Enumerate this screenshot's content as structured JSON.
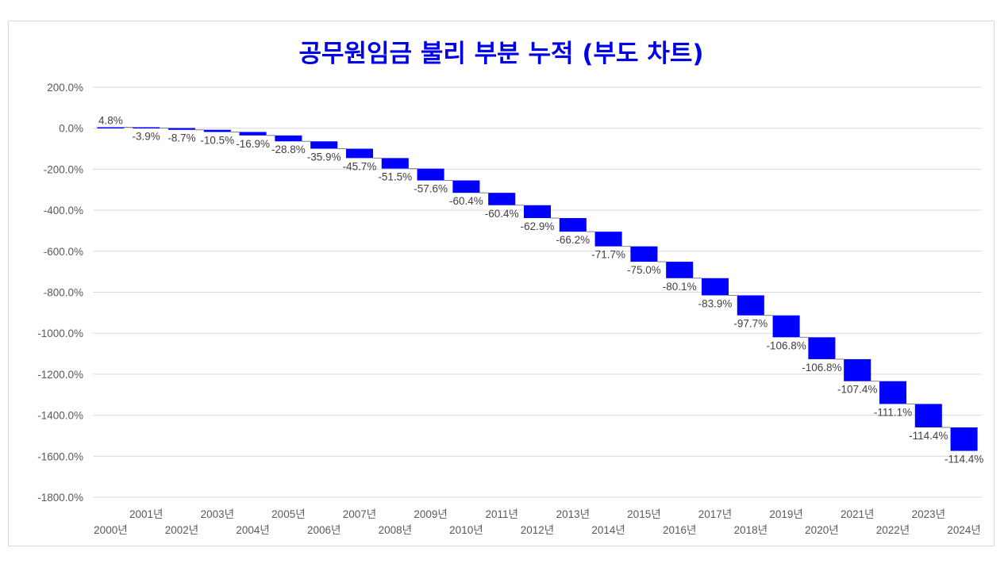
{
  "chart_data": {
    "type": "waterfall",
    "title": "공무원임금 불리 부분 누적 (부도 차트)",
    "xlabel": "",
    "ylabel": "",
    "ylim": [
      -1800,
      200
    ],
    "ytick_step": 200,
    "y_tick_labels": [
      "200.0%",
      "0.0%",
      "-200.0%",
      "-400.0%",
      "-600.0%",
      "-800.0%",
      "-1000.0%",
      "-1200.0%",
      "-1400.0%",
      "-1600.0%",
      "-1800.0%"
    ],
    "grid": true,
    "legend": "none",
    "bar_color": "#0000ff",
    "categories": [
      "2000년",
      "2001년",
      "2002년",
      "2003년",
      "2004년",
      "2005년",
      "2006년",
      "2007년",
      "2008년",
      "2009년",
      "2010년",
      "2011년",
      "2012년",
      "2013년",
      "2014년",
      "2015년",
      "2016년",
      "2017년",
      "2018년",
      "2019년",
      "2020년",
      "2021년",
      "2022년",
      "2023년",
      "2024년"
    ],
    "values": [
      4.8,
      -3.9,
      -8.7,
      -10.5,
      -16.9,
      -28.8,
      -35.9,
      -45.7,
      -51.5,
      -57.6,
      -60.4,
      -60.4,
      -62.9,
      -66.2,
      -71.7,
      -75.0,
      -80.1,
      -83.9,
      -97.7,
      -106.8,
      -106.8,
      -107.4,
      -111.1,
      -114.4,
      -114.4
    ],
    "value_labels": [
      "4.8%",
      "-3.9%",
      "-8.7%",
      "-10.5%",
      "-16.9%",
      "-28.8%",
      "-35.9%",
      "-45.7%",
      "-51.5%",
      "-57.6%",
      "-60.4%",
      "-60.4%",
      "-62.9%",
      "-66.2%",
      "-71.7%",
      "-75.0%",
      "-80.1%",
      "-83.9%",
      "-97.7%",
      "-106.8%",
      "-106.8%",
      "-107.4%",
      "-111.1%",
      "-114.4%",
      "-114.4%"
    ]
  }
}
